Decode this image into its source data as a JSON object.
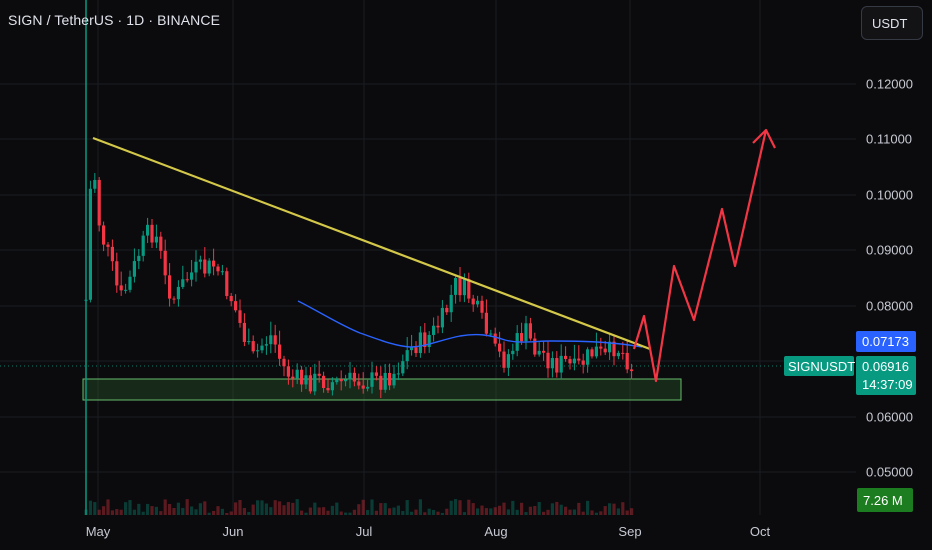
{
  "header": {
    "title": "SIGN / TetherUS · 1D · BINANCE"
  },
  "toolbar": {
    "currency_label": "USDT"
  },
  "price_axis": {
    "ticks": [
      "0.12000",
      "0.11000",
      "0.10000",
      "0.09000",
      "0.08000",
      "0.06000",
      "0.05000"
    ],
    "tick_values": [
      0.12,
      0.11,
      0.1,
      0.09,
      0.08,
      0.06,
      0.05
    ]
  },
  "time_axis": {
    "labels": [
      "May",
      "Jun",
      "Jul",
      "Aug",
      "Sep",
      "Oct"
    ]
  },
  "badges": {
    "ma_value": "0.07173",
    "symbol": "SIGNUSDT",
    "last_price": "0.06916",
    "countdown": "14:37:09",
    "volume": "7.26 M"
  },
  "colors": {
    "background": "#0b0b0d",
    "up_candle": "#089981",
    "down_candle": "#f23645",
    "trendline": "#d4c84a",
    "projection": "#f23645",
    "ma_line": "#2962ff",
    "support_zone": "#4caf50"
  }
}
